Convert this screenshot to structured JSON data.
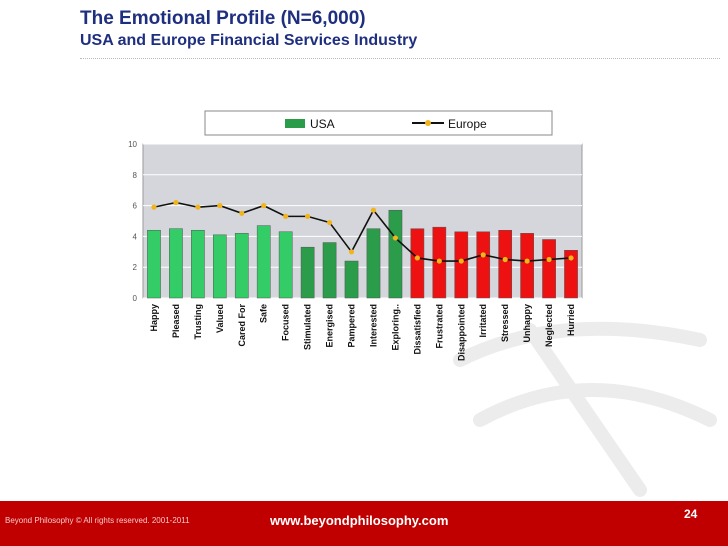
{
  "slide": {
    "title": "The Emotional Profile (N=6,000)",
    "subtitle": "USA and Europe Financial Services Industry",
    "footer_copyright": "Beyond Philosophy © All rights reserved. 2001-2011",
    "footer_url": "www.beyondphilosophy.com",
    "page_number": "24"
  },
  "colors": {
    "title": "#1f2f80",
    "footer_bg": "#c00000",
    "plot_bg": "#d4d6dc",
    "positive_bar": "#33cc66",
    "negative_bar": "#ee1111",
    "europe_line": "#111111",
    "europe_marker": "#f2b41b"
  },
  "chart_data": {
    "type": "bar",
    "categories": [
      "Happy",
      "Pleased",
      "Trusting",
      "Valued",
      "Cared For",
      "Safe",
      "Focused",
      "Stimulated",
      "Energised",
      "Pampered",
      "Interested",
      "Exploring..",
      "Dissatisfied",
      "Frustrated",
      "Disappointed",
      "Irritated",
      "Stressed",
      "Unhappy",
      "Neglected",
      "Hurried"
    ],
    "series": [
      {
        "name": "USA",
        "type": "bar",
        "values": [
          4.4,
          4.5,
          4.4,
          4.1,
          4.2,
          4.7,
          4.3,
          3.3,
          3.6,
          2.4,
          4.5,
          5.7,
          4.5,
          4.6,
          4.3,
          4.3,
          4.4,
          4.2,
          3.8,
          3.1
        ],
        "bar_colors": [
          "#33cc66",
          "#33cc66",
          "#33cc66",
          "#33cc66",
          "#33cc66",
          "#33cc66",
          "#33cc66",
          "#2a9c4a",
          "#2a9c4a",
          "#2a9c4a",
          "#2a9c4a",
          "#2a9c4a",
          "#ee1111",
          "#ee1111",
          "#ee1111",
          "#ee1111",
          "#ee1111",
          "#ee1111",
          "#ee1111",
          "#ee1111"
        ]
      },
      {
        "name": "Europe",
        "type": "line",
        "values": [
          5.9,
          6.2,
          5.9,
          6.0,
          5.5,
          6.0,
          5.3,
          5.3,
          4.9,
          3.0,
          5.7,
          3.9,
          2.6,
          2.4,
          2.4,
          2.8,
          2.5,
          2.4,
          2.5,
          2.6
        ]
      }
    ],
    "yticks": [
      0,
      2,
      4,
      6,
      8,
      10
    ],
    "ylim": [
      0,
      10
    ],
    "grid": true,
    "legend": "top"
  }
}
